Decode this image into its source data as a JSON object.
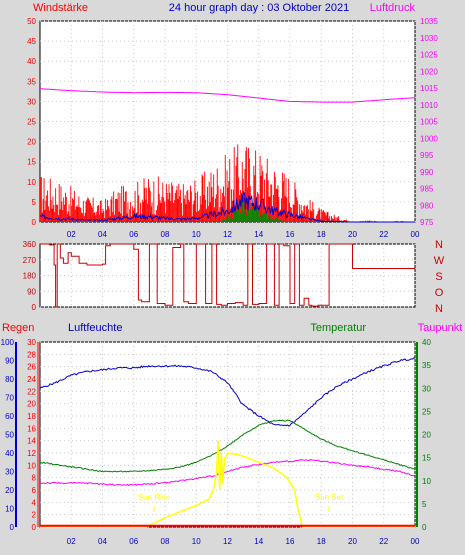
{
  "header": {
    "title": "24 hour graph day : 03 Oktober 2021",
    "left_label": "Windstärke",
    "right_label": "Luftdruck"
  },
  "colors": {
    "background": "#d9d9d9",
    "plot_bg": "#ffffff",
    "wind": "#ff0000",
    "gust_blue": "#0000cc",
    "sun_green": "#008800",
    "pressure": "#ff00ff",
    "direction": "#cc0000",
    "humidity": "#0000cc",
    "temperature": "#008000",
    "dewpoint": "#ff00ff",
    "solar": "#ffff00",
    "rain": "#ff0000",
    "title": "#0000cc"
  },
  "bottom_labels": {
    "regen": "Regen",
    "luftfeuchte": "Luftfeuchte",
    "temperatur": "Temperatur",
    "taupunkt": "Taupunkt"
  },
  "direction_labels": [
    "N",
    "W",
    "S",
    "O",
    "N"
  ],
  "annotations": {
    "sun_rise": "Sun Rise",
    "sun_set": "Sun Set"
  },
  "chart_data": [
    {
      "type": "bar",
      "name": "wind_pressure",
      "x_ticks": [
        "02",
        "04",
        "06",
        "08",
        "10",
        "12",
        "14",
        "16",
        "18",
        "20",
        "22",
        "00"
      ],
      "y_left_ticks": [
        "0",
        "5",
        "10",
        "15",
        "20",
        "25",
        "30",
        "35",
        "40",
        "45",
        "50"
      ],
      "ylim_left": [
        0,
        50
      ],
      "y_right_ticks": [
        "975",
        "980",
        "985",
        "990",
        "995",
        "1000",
        "1005",
        "1010",
        "1015",
        "1020",
        "1025",
        "1030",
        "1035"
      ],
      "ylim_right": [
        975,
        1035
      ],
      "xlim": [
        0,
        24
      ],
      "pressure": {
        "x": [
          0,
          2,
          4,
          6,
          8,
          10,
          12,
          14,
          16,
          18,
          20,
          22,
          24
        ],
        "y": [
          1014.8,
          1014.2,
          1013.8,
          1013.6,
          1013.7,
          1013.6,
          1013,
          1012,
          1011,
          1010.8,
          1010.8,
          1011.5,
          1012.1
        ]
      },
      "wind_envelope": {
        "x": [
          0,
          1,
          2,
          3,
          4,
          5,
          6,
          7,
          8,
          9,
          10,
          11,
          12,
          13,
          14,
          15,
          16,
          17,
          18,
          19,
          20,
          21,
          22,
          23,
          24
        ],
        "y": [
          11,
          10,
          8,
          6,
          5,
          8,
          9,
          11,
          10,
          9,
          10,
          13,
          16,
          19,
          17,
          14,
          11,
          6,
          3,
          1.5,
          0,
          0.5,
          0,
          0.3,
          0
        ]
      },
      "gust_envelope": {
        "x": [
          0,
          1,
          2,
          3,
          4,
          5,
          6,
          7,
          8,
          9,
          10,
          11,
          12,
          13,
          14,
          15,
          16,
          17,
          18,
          20,
          22,
          24
        ],
        "y": [
          1.5,
          1,
          0.8,
          0.5,
          0.5,
          1,
          1.5,
          1.5,
          1,
          0.8,
          1,
          2,
          3,
          6,
          5,
          3,
          2,
          1,
          0.2,
          0,
          0,
          0
        ]
      },
      "sun_envelope": {
        "x": [
          11.5,
          12,
          12.5,
          13,
          13.5,
          14,
          14.5,
          15,
          15.5,
          16
        ],
        "y": [
          0,
          1.5,
          3,
          5,
          4,
          3,
          2,
          1,
          0.5,
          0
        ]
      }
    },
    {
      "type": "line",
      "name": "wind_direction",
      "y_ticks": [
        "0",
        "90",
        "180",
        "270",
        "360"
      ],
      "ylim": [
        0,
        360
      ],
      "xlim": [
        0,
        24
      ],
      "series": [
        {
          "x": [
            0,
            0.6,
            0.9,
            1,
            1.1,
            1.3,
            1.5,
            1.8,
            2,
            2.5,
            3,
            3.5,
            4,
            4.2,
            4.5,
            5,
            5.5,
            6,
            6.3,
            6.5,
            7,
            7.2,
            7.5,
            8,
            8.5,
            9,
            9.2,
            9.5,
            10,
            10.3,
            10.6,
            11,
            11.3,
            11.6,
            12,
            12.5,
            13,
            13.3,
            13.6,
            14,
            14.5,
            15,
            15.3,
            15.6,
            16,
            16.3,
            16.6,
            16.9,
            17.2,
            17.4,
            17.8,
            18.2,
            18.5,
            19,
            20,
            21,
            22,
            23,
            24
          ],
          "y": [
            360,
            355,
            240,
            0,
            360,
            280,
            250,
            310,
            290,
            250,
            240,
            240,
            245,
            350,
            360,
            360,
            360,
            330,
            40,
            30,
            360,
            360,
            20,
            10,
            340,
            360,
            30,
            20,
            360,
            360,
            20,
            360,
            15,
            10,
            20,
            25,
            10,
            360,
            15,
            20,
            360,
            10,
            360,
            350,
            20,
            360,
            10,
            50,
            10,
            5,
            10,
            10,
            360,
            360,
            220,
            220,
            220,
            220,
            220
          ]
        }
      ]
    },
    {
      "type": "line",
      "name": "temp_humidity",
      "xlim": [
        0,
        24
      ],
      "y_regen_ticks": [
        "0",
        "2",
        "4",
        "6",
        "8",
        "10",
        "12",
        "14",
        "16",
        "18",
        "20",
        "22",
        "24",
        "26",
        "28",
        "30"
      ],
      "y_feuchte_ticks": [
        "0",
        "10",
        "20",
        "30",
        "40",
        "50",
        "60",
        "70",
        "80",
        "90",
        "100"
      ],
      "y_temp_ticks": [
        "0",
        "5",
        "10",
        "15",
        "20",
        "25",
        "30",
        "35",
        "40"
      ],
      "ylim_regen": [
        0,
        30
      ],
      "ylim_feuchte": [
        0,
        100
      ],
      "ylim_temp": [
        0,
        40
      ],
      "series": [
        {
          "name": "Luftfeuchte",
          "axis": "feuchte",
          "x": [
            0,
            1,
            2,
            3,
            4,
            5,
            6,
            7,
            8,
            9,
            10,
            11,
            12,
            13,
            14,
            15,
            16,
            17,
            18,
            19,
            20,
            21,
            22,
            23,
            24
          ],
          "y": [
            75,
            78,
            82,
            84,
            85,
            86,
            86,
            87,
            87,
            87,
            86,
            84,
            78,
            66,
            60,
            55,
            55,
            62,
            70,
            76,
            80,
            84,
            87,
            90,
            91
          ]
        },
        {
          "name": "Temperatur",
          "axis": "temp",
          "x": [
            0,
            1,
            2,
            3,
            4,
            5,
            6,
            7,
            8,
            9,
            10,
            11,
            12,
            13,
            14,
            15,
            16,
            17,
            18,
            19,
            20,
            21,
            22,
            23,
            24
          ],
          "y": [
            14,
            13.5,
            13,
            12.5,
            12,
            12,
            12,
            12.2,
            12.5,
            13,
            14,
            15.5,
            17.5,
            20,
            22,
            23,
            23,
            21,
            19,
            17.5,
            16.5,
            15.5,
            14.5,
            13.5,
            12.5
          ]
        },
        {
          "name": "Taupunkt",
          "axis": "temp",
          "x": [
            0,
            1,
            2,
            3,
            4,
            5,
            6,
            7,
            8,
            9,
            10,
            11,
            12,
            13,
            14,
            15,
            16,
            17,
            18,
            19,
            20,
            21,
            22,
            23,
            24
          ],
          "y": [
            9.5,
            9.5,
            9.5,
            9.5,
            9.3,
            9.1,
            9.1,
            9.3,
            9.6,
            10,
            10.5,
            11,
            12,
            13,
            13.5,
            14,
            14.2,
            14.5,
            14.3,
            13.8,
            13.3,
            13,
            12.5,
            12,
            11
          ]
        },
        {
          "name": "Solar",
          "axis": "regen",
          "x": [
            0,
            6.8,
            7.2,
            8,
            9,
            10,
            10.8,
            11.1,
            11.3,
            11.4,
            11.5,
            11.6,
            11.7,
            11.8,
            12,
            12.5,
            13,
            14,
            15,
            15.8,
            16.3,
            16.5,
            16.8,
            24
          ],
          "y": [
            0,
            0,
            0.5,
            1.5,
            2.5,
            3.5,
            4.5,
            6,
            9,
            14,
            6,
            12,
            7,
            11,
            12,
            11.8,
            11.5,
            10.5,
            9.5,
            8,
            6,
            3,
            0,
            0
          ]
        },
        {
          "name": "Regen",
          "axis": "regen",
          "x": [
            0,
            24
          ],
          "y": [
            0.2,
            0.2
          ]
        }
      ],
      "sun_rise": 7.3,
      "sun_set": 18.5
    }
  ]
}
